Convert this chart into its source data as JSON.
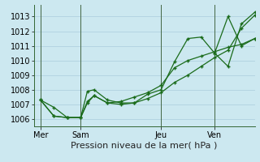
{
  "background_color": "#cce8f0",
  "grid_color": "#aaccdd",
  "line_color": "#1a6b1a",
  "marker_color": "#1a6b1a",
  "title": "Pression niveau de la mer( hPa )",
  "ylim": [
    1005.5,
    1013.8
  ],
  "yticks": [
    1006,
    1007,
    1008,
    1009,
    1010,
    1011,
    1012,
    1013
  ],
  "day_labels": [
    "Mer",
    "Sam",
    "Jeu",
    "Ven"
  ],
  "day_positions": [
    0,
    24,
    72,
    104
  ],
  "vline_positions": [
    0,
    24,
    72,
    104
  ],
  "xlim": [
    -4,
    128
  ],
  "series1_x": [
    0,
    8,
    16,
    24,
    28,
    32,
    40,
    48,
    56,
    64,
    72,
    80,
    88,
    96,
    104,
    112,
    120,
    128
  ],
  "series1_y": [
    1007.3,
    1006.8,
    1006.1,
    1006.1,
    1007.9,
    1008.0,
    1007.3,
    1007.1,
    1007.1,
    1007.7,
    1008.0,
    1009.9,
    1011.5,
    1011.6,
    1010.5,
    1009.6,
    1012.5,
    1013.3
  ],
  "series2_x": [
    0,
    8,
    16,
    24,
    28,
    32,
    40,
    48,
    56,
    64,
    72,
    80,
    88,
    96,
    104,
    112,
    120,
    128
  ],
  "series2_y": [
    1007.3,
    1006.2,
    1006.1,
    1006.1,
    1007.2,
    1007.6,
    1007.1,
    1007.2,
    1007.5,
    1007.8,
    1008.3,
    1009.5,
    1010.0,
    1010.3,
    1010.6,
    1010.9,
    1011.1,
    1011.5
  ],
  "series3_x": [
    0,
    8,
    16,
    24,
    28,
    32,
    40,
    48,
    56,
    64,
    72,
    80,
    88,
    96,
    104,
    112,
    120,
    128
  ],
  "series3_y": [
    1007.3,
    1006.2,
    1006.1,
    1006.1,
    1007.1,
    1007.6,
    1007.1,
    1007.0,
    1007.1,
    1007.4,
    1007.8,
    1008.5,
    1009.0,
    1009.6,
    1010.2,
    1010.7,
    1012.2,
    1013.1
  ],
  "series4_x": [
    104,
    112,
    120,
    128
  ],
  "series4_y": [
    1010.5,
    1013.0,
    1011.0,
    1011.5
  ],
  "fontsize_title": 8,
  "fontsize_ticks": 7,
  "spine_color": "#336633"
}
